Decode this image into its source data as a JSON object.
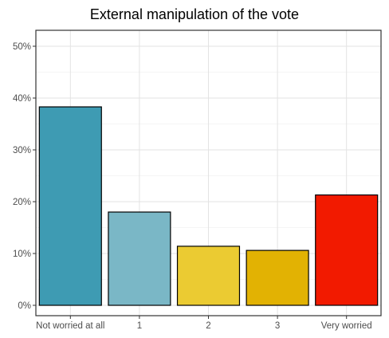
{
  "chart_data": {
    "type": "bar",
    "title": "External manipulation of the vote",
    "xlabel": "",
    "ylabel": "",
    "categories": [
      "Not worried at all",
      "1",
      "2",
      "3",
      "Very worried"
    ],
    "values": [
      38.3,
      18.0,
      11.4,
      10.6,
      21.3
    ],
    "colors": [
      "#3E9BB3",
      "#7AB7C6",
      "#EBCB32",
      "#E2B203",
      "#F21A00"
    ],
    "ylim": [
      0,
      50
    ],
    "yticks": [
      0,
      10,
      20,
      30,
      40,
      50
    ],
    "ytick_labels": [
      "0%",
      "10%",
      "20%",
      "30%",
      "40%",
      "50%"
    ],
    "grid": true,
    "legend": "none"
  }
}
